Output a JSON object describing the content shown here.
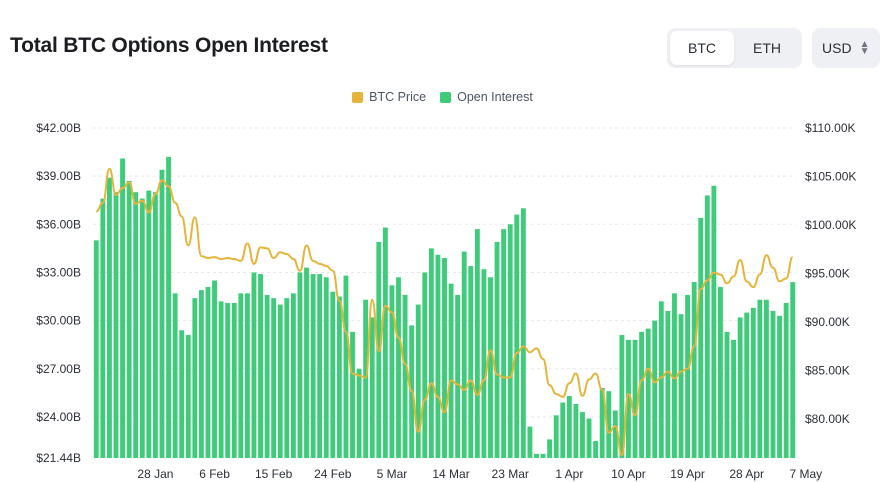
{
  "header": {
    "title": "Total BTC Options Open Interest",
    "asset_active": "BTC",
    "asset_other": "ETH",
    "currency": "USD"
  },
  "colors": {
    "bar": "#3ecb7a",
    "line": "#e5b53b",
    "grid": "#e6e8eb"
  },
  "chart_data": {
    "type": "bar",
    "title": "Total BTC Options Open Interest",
    "legend": [
      "BTC Price",
      "Open Interest"
    ],
    "legend_position": "top-center",
    "grid": true,
    "y_left": {
      "ticks": [
        "$21.44B",
        "$24.00B",
        "$27.00B",
        "$30.00B",
        "$33.00B",
        "$36.00B",
        "$39.00B",
        "$42.00B"
      ],
      "tick_values": [
        21.44,
        24,
        27,
        30,
        33,
        36,
        39,
        42
      ],
      "ylim": [
        21.44,
        42
      ]
    },
    "y_right": {
      "ticks": [
        "$80.00K",
        "$85.00K",
        "$90.00K",
        "$95.00K",
        "$100.00K",
        "$105.00K",
        "$110.00K"
      ],
      "tick_values": [
        80,
        85,
        90,
        95,
        100,
        105,
        110
      ],
      "ylim": [
        76,
        110
      ]
    },
    "x_ticks": [
      "28 Jan",
      "6 Feb",
      "15 Feb",
      "24 Feb",
      "5 Mar",
      "14 Mar",
      "23 Mar",
      "1 Apr",
      "10 Apr",
      "19 Apr",
      "28 Apr",
      "7 May"
    ],
    "x_tick_positions": [
      9,
      18,
      27,
      36,
      45,
      54,
      63,
      72,
      81,
      90,
      99,
      108
    ],
    "series": [
      {
        "name": "Open Interest",
        "kind": "bar",
        "axis": "left",
        "values": [
          35.0,
          37.6,
          38.9,
          38.0,
          40.1,
          38.7,
          38.0,
          37.6,
          38.1,
          38.0,
          39.4,
          40.2,
          31.7,
          29.4,
          29.1,
          31.4,
          31.9,
          32.1,
          32.5,
          31.2,
          31.1,
          31.1,
          31.7,
          31.7,
          33.0,
          32.9,
          31.6,
          31.4,
          31.0,
          31.4,
          31.7,
          33.0,
          33.3,
          32.9,
          32.9,
          32.7,
          31.8,
          31.5,
          32.8,
          29.3,
          27.0,
          31.3,
          30.2,
          34.9,
          35.8,
          32.2,
          32.7,
          31.6,
          29.7,
          31.0,
          33.0,
          34.5,
          34.1,
          33.9,
          32.3,
          31.6,
          34.3,
          33.4,
          35.7,
          33.2,
          32.7,
          34.9,
          35.7,
          36.0,
          36.6,
          37.0,
          23.4,
          21.7,
          21.7,
          22.6,
          24.1,
          24.9,
          25.3,
          24.8,
          24.3,
          23.9,
          22.5,
          25.8,
          25.6,
          24.4,
          29.1,
          28.8,
          28.8,
          29.3,
          29.5,
          30.0,
          31.2,
          30.6,
          31.7,
          30.4,
          31.6,
          32.4,
          36.4,
          37.8,
          38.4,
          32.1,
          29.3,
          28.8,
          30.2,
          30.5,
          30.8,
          31.3,
          31.3,
          30.6,
          30.3,
          31.1,
          32.4
        ]
      },
      {
        "name": "BTC Price",
        "kind": "line",
        "axis": "right",
        "values": [
          101.4,
          102.3,
          105.8,
          103.1,
          103.8,
          104.4,
          102.2,
          102.5,
          101.3,
          103.2,
          104.6,
          104.0,
          102.3,
          100.9,
          97.9,
          100.8,
          96.8,
          96.6,
          96.7,
          96.5,
          96.6,
          96.5,
          96.3,
          98.1,
          96.0,
          97.7,
          97.6,
          96.6,
          97.2,
          97.0,
          96.5,
          95.3,
          97.9,
          96.3,
          96.0,
          95.8,
          95.3,
          92.2,
          89.0,
          84.7,
          84.5,
          84.3,
          92.3,
          87.0,
          91.7,
          91.0,
          88.4,
          85.7,
          82.9,
          78.7,
          82.0,
          83.7,
          82.3,
          80.7,
          84.0,
          83.6,
          83.0,
          84.0,
          82.5,
          84.0,
          87.1,
          84.6,
          84.3,
          84.3,
          86.8,
          87.5,
          86.9,
          87.3,
          86.2,
          83.5,
          82.6,
          82.3,
          83.7,
          84.7,
          82.4,
          84.1,
          84.7,
          83.0,
          78.6,
          79.3,
          76.3,
          82.6,
          80.4,
          84.0,
          85.2,
          83.8,
          84.3,
          84.9,
          84.2,
          84.9,
          85.2,
          87.5,
          93.4,
          94.3,
          95.1,
          94.9,
          94.0,
          94.7,
          96.4,
          94.2,
          93.6,
          94.9,
          96.9,
          95.6,
          94.2,
          94.5,
          96.7
        ]
      }
    ]
  }
}
